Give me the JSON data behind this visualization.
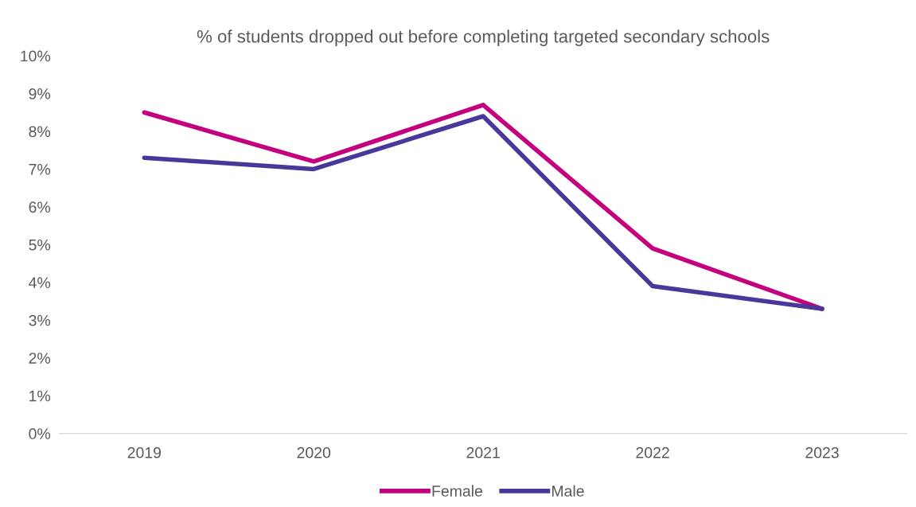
{
  "chart_data": {
    "type": "line",
    "title": "% of students dropped out before completing targeted secondary schools",
    "categories": [
      "2019",
      "2020",
      "2021",
      "2022",
      "2023"
    ],
    "series": [
      {
        "name": "Female",
        "color": "#c4007f",
        "values": [
          8.5,
          7.2,
          8.7,
          4.9,
          3.3
        ]
      },
      {
        "name": "Male",
        "color": "#48389a",
        "values": [
          7.3,
          7.0,
          8.4,
          3.9,
          3.3
        ]
      }
    ],
    "ylim": [
      0,
      10
    ],
    "yticks": [
      {
        "value": 0,
        "label": "0%"
      },
      {
        "value": 1,
        "label": "1%"
      },
      {
        "value": 2,
        "label": "2%"
      },
      {
        "value": 3,
        "label": "3%"
      },
      {
        "value": 4,
        "label": "4%"
      },
      {
        "value": 5,
        "label": "5%"
      },
      {
        "value": 6,
        "label": "6%"
      },
      {
        "value": 7,
        "label": "7%"
      },
      {
        "value": 8,
        "label": "8%"
      },
      {
        "value": 9,
        "label": "9%"
      },
      {
        "value": 10,
        "label": "10%"
      }
    ],
    "grid": false,
    "legend": "bottom",
    "marker": "none",
    "line_style": "solid"
  }
}
